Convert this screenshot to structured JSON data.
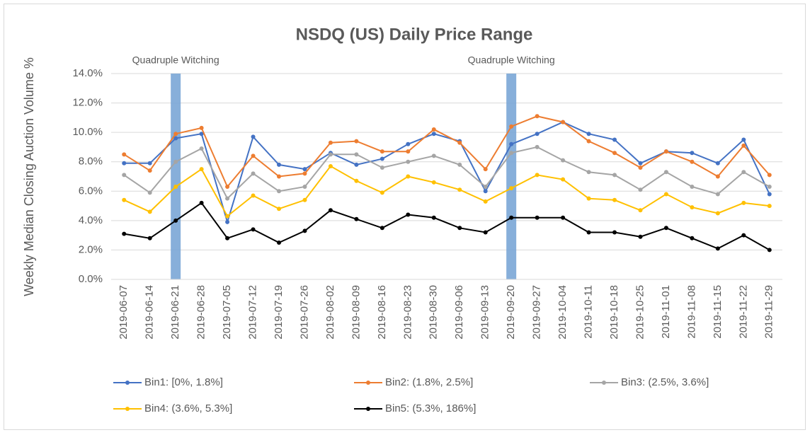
{
  "chart_data": {
    "type": "line",
    "title": "NSDQ (US) Daily Price Range",
    "y_label": "Weekly Median Closing Auction Volume %",
    "categories": [
      "2019-06-07",
      "2019-06-14",
      "2019-06-21",
      "2019-06-28",
      "2019-07-05",
      "2019-07-12",
      "2019-07-19",
      "2019-07-26",
      "2019-08-02",
      "2019-08-09",
      "2019-08-16",
      "2019-08-23",
      "2019-08-30",
      "2019-09-06",
      "2019-09-13",
      "2019-09-20",
      "2019-09-27",
      "2019-10-04",
      "2019-10-11",
      "2019-10-18",
      "2019-10-25",
      "2019-11-01",
      "2019-11-08",
      "2019-11-15",
      "2019-11-22",
      "2019-11-29"
    ],
    "series": [
      {
        "name": "Bin1: [0%, 1.8%]",
        "color": "#4472c4",
        "values": [
          7.9,
          7.9,
          9.6,
          9.9,
          3.9,
          9.7,
          7.8,
          7.5,
          8.6,
          7.8,
          8.2,
          9.2,
          9.9,
          9.4,
          6.0,
          9.2,
          9.9,
          10.7,
          9.9,
          9.5,
          7.9,
          8.7,
          8.6,
          7.9,
          9.5,
          5.8
        ]
      },
      {
        "name": "Bin2: (1.8%, 2.5%]",
        "color": "#ed7d31",
        "values": [
          8.5,
          7.4,
          9.9,
          10.3,
          6.3,
          8.4,
          7.0,
          7.2,
          9.3,
          9.4,
          8.7,
          8.7,
          10.2,
          9.3,
          7.5,
          10.4,
          11.1,
          10.7,
          9.4,
          8.6,
          7.6,
          8.7,
          8.0,
          7.0,
          9.1,
          7.1
        ]
      },
      {
        "name": "Bin3: (2.5%, 3.6%]",
        "color": "#a5a5a5",
        "values": [
          7.1,
          5.9,
          8.0,
          8.9,
          5.5,
          7.2,
          6.0,
          6.3,
          8.5,
          8.5,
          7.6,
          8.0,
          8.4,
          7.8,
          6.3,
          8.6,
          9.0,
          8.1,
          7.3,
          7.1,
          6.1,
          7.3,
          6.3,
          5.8,
          7.3,
          6.3
        ]
      },
      {
        "name": "Bin4: (3.6%, 5.3%]",
        "color": "#ffc000",
        "values": [
          5.4,
          4.6,
          6.3,
          7.5,
          4.3,
          5.7,
          4.8,
          5.4,
          7.7,
          6.7,
          5.9,
          7.0,
          6.6,
          6.1,
          5.3,
          6.2,
          7.1,
          6.8,
          5.5,
          5.4,
          4.7,
          5.8,
          4.9,
          4.5,
          5.2,
          5.0
        ]
      },
      {
        "name": "Bin5: (5.3%, 186%]",
        "color": "#000000",
        "values": [
          3.1,
          2.8,
          4.0,
          5.2,
          2.8,
          3.4,
          2.5,
          3.3,
          4.7,
          4.1,
          3.5,
          4.4,
          4.2,
          3.5,
          3.2,
          4.2,
          4.2,
          4.2,
          3.2,
          3.2,
          2.9,
          3.5,
          2.8,
          2.1,
          3.0,
          2.0
        ]
      }
    ],
    "annotations": [
      {
        "text": "Quadruple Witching",
        "category": "2019-06-21",
        "color": "#7aa6d6"
      },
      {
        "text": "Quadruple Witching",
        "category": "2019-09-20",
        "color": "#7aa6d6"
      }
    ],
    "ylim": [
      0,
      14
    ],
    "yticks": [
      {
        "value": 0,
        "label": "0.0%"
      },
      {
        "value": 2,
        "label": "2.0%"
      },
      {
        "value": 4,
        "label": "4.0%"
      },
      {
        "value": 6,
        "label": "6.0%"
      },
      {
        "value": 8,
        "label": "8.0%"
      },
      {
        "value": 10,
        "label": "10.0%"
      },
      {
        "value": 12,
        "label": "12.0%"
      },
      {
        "value": 14,
        "label": "14.0%"
      }
    ],
    "grid": true,
    "legend": "bottom"
  }
}
